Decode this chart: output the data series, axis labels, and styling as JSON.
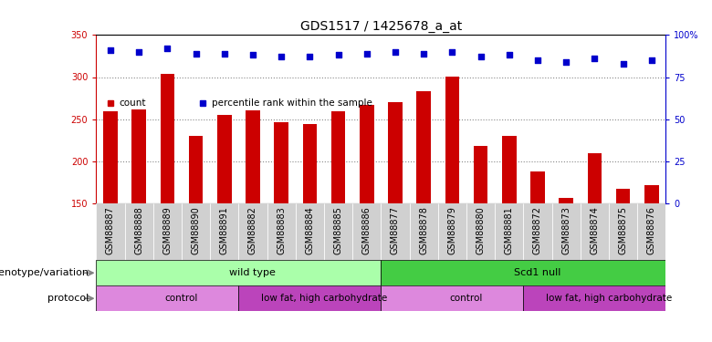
{
  "title": "GDS1517 / 1425678_a_at",
  "samples": [
    "GSM88887",
    "GSM88888",
    "GSM88889",
    "GSM88890",
    "GSM88891",
    "GSM88882",
    "GSM88883",
    "GSM88884",
    "GSM88885",
    "GSM88886",
    "GSM88877",
    "GSM88878",
    "GSM88879",
    "GSM88880",
    "GSM88881",
    "GSM88872",
    "GSM88873",
    "GSM88874",
    "GSM88875",
    "GSM88876"
  ],
  "counts": [
    260,
    262,
    304,
    230,
    255,
    261,
    247,
    244,
    260,
    267,
    270,
    283,
    301,
    218,
    230,
    188,
    157,
    210,
    168,
    172
  ],
  "percentiles": [
    91,
    90,
    92,
    89,
    89,
    88,
    87,
    87,
    88,
    89,
    90,
    89,
    90,
    87,
    88,
    85,
    84,
    86,
    83,
    85
  ],
  "ylim_left": [
    150,
    350
  ],
  "ylim_right": [
    0,
    100
  ],
  "yticks_left": [
    150,
    200,
    250,
    300,
    350
  ],
  "yticks_right": [
    0,
    25,
    50,
    75,
    100
  ],
  "ytick_right_labels": [
    "0",
    "25",
    "50",
    "75",
    "100%"
  ],
  "bar_color": "#cc0000",
  "dot_color": "#0000cc",
  "grid_color": "#888888",
  "xtick_bg": "#d0d0d0",
  "genotype_groups": [
    {
      "label": "wild type",
      "start": 0,
      "end": 10,
      "color": "#aaffaa"
    },
    {
      "label": "Scd1 null",
      "start": 10,
      "end": 20,
      "color": "#44cc44"
    }
  ],
  "protocol_groups": [
    {
      "label": "control",
      "start": 0,
      "end": 5,
      "color": "#dd88dd"
    },
    {
      "label": "low fat, high carbohydrate",
      "start": 5,
      "end": 10,
      "color": "#bb44bb"
    },
    {
      "label": "control",
      "start": 10,
      "end": 15,
      "color": "#dd88dd"
    },
    {
      "label": "low fat, high carbohydrate",
      "start": 15,
      "end": 20,
      "color": "#bb44bb"
    }
  ],
  "legend_items": [
    {
      "label": "count",
      "color": "#cc0000"
    },
    {
      "label": "percentile rank within the sample",
      "color": "#0000cc"
    }
  ],
  "title_fontsize": 10,
  "tick_fontsize": 7,
  "label_fontsize": 8,
  "annotation_label_fontsize": 8
}
